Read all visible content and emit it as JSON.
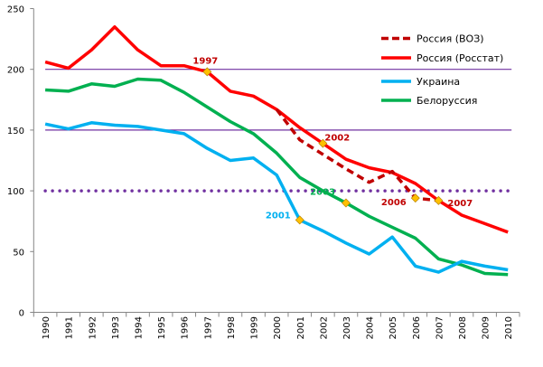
{
  "chart_data": {
    "type": "line",
    "title": "",
    "xlabel": "",
    "ylabel": "",
    "ylim": [
      0,
      250
    ],
    "yticks": [
      0,
      50,
      100,
      150,
      200,
      250
    ],
    "grid": false,
    "legend_position": "top-right",
    "categories": [
      "1990",
      "1991",
      "1992",
      "1993",
      "1994",
      "1995",
      "1996",
      "1997",
      "1998",
      "1999",
      "2000",
      "2001",
      "2002",
      "2003",
      "2004",
      "2005",
      "2006",
      "2007",
      "2008",
      "2009",
      "2010"
    ],
    "series": [
      {
        "name": "Россия (ВОЗ)",
        "color": "#C00000",
        "style": "dashed",
        "values": [
          null,
          null,
          null,
          null,
          null,
          null,
          null,
          null,
          null,
          null,
          167,
          142,
          130,
          118,
          107,
          116,
          94,
          92,
          null,
          null,
          null
        ]
      },
      {
        "name": "Россия (Росстат)",
        "color": "#FF0000",
        "style": "solid",
        "values": [
          206,
          201,
          216,
          235,
          216,
          203,
          203,
          198,
          182,
          178,
          167,
          152,
          139,
          126,
          119,
          115,
          106,
          92,
          80,
          73,
          66
        ]
      },
      {
        "name": "Украина",
        "color": "#00B0F0",
        "style": "solid",
        "values": [
          155,
          151,
          156,
          154,
          153,
          150,
          147,
          135,
          125,
          127,
          113,
          76,
          67,
          57,
          48,
          62,
          38,
          33,
          42,
          38,
          35
        ]
      },
      {
        "name": "Белоруссия",
        "color": "#00B050",
        "style": "solid",
        "values": [
          183,
          182,
          188,
          186,
          192,
          191,
          181,
          169,
          157,
          147,
          131,
          111,
          100,
          90,
          79,
          70,
          61,
          44,
          39,
          32,
          31
        ]
      }
    ],
    "reference_lines": [
      {
        "name": "level-200",
        "value": 200,
        "color": "#7030A0",
        "style": "solid"
      },
      {
        "name": "level-150",
        "value": 150,
        "color": "#7030A0",
        "style": "solid"
      },
      {
        "name": "level-100",
        "value": 100,
        "color": "#7030A0",
        "style": "dotted"
      }
    ],
    "annotations": [
      {
        "label": "1997",
        "category": "1997",
        "value": 198,
        "color": "#C00000",
        "marker": true
      },
      {
        "label": "2002",
        "category": "2002",
        "value": 139,
        "color": "#C00000",
        "marker": true
      },
      {
        "label": "2001",
        "category": "2001",
        "value": 76,
        "color": "#00B0F0",
        "marker": true
      },
      {
        "label": "2003",
        "category": "2003",
        "value": 90,
        "color": "#00B050",
        "marker": true
      },
      {
        "label": "2006",
        "category": "2006",
        "value": 94,
        "color": "#C00000",
        "marker": true
      },
      {
        "label": "2007",
        "category": "2007",
        "value": 92,
        "color": "#C00000",
        "marker": true
      }
    ],
    "marker_color": "#FFC000"
  }
}
